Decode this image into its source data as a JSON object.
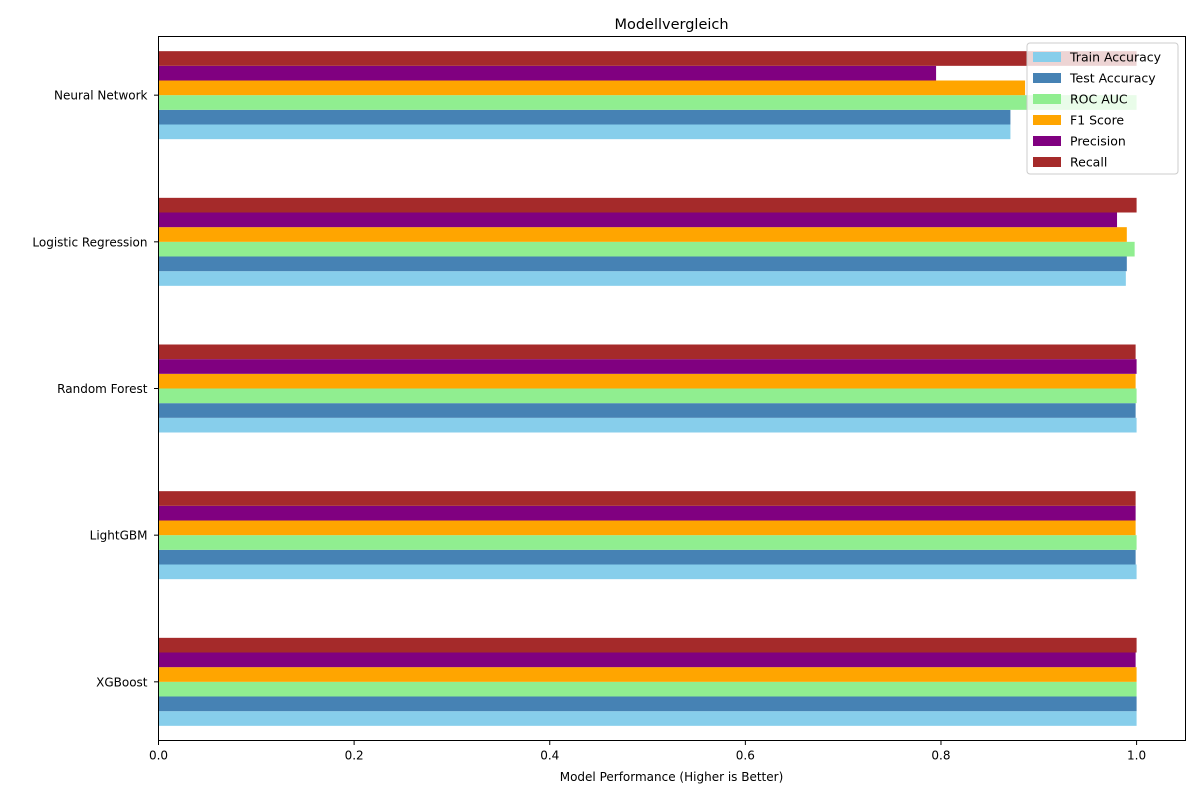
{
  "chart_data": {
    "type": "bar",
    "orientation": "horizontal",
    "title": "Modellvergleich",
    "xlabel": "Model Performance (Higher is Better)",
    "ylabel": "",
    "xlim": [
      0,
      1.05
    ],
    "xticks": [
      "0.0",
      "0.2",
      "0.4",
      "0.6",
      "0.8",
      "1.0"
    ],
    "categories": [
      "XGBoost",
      "LightGBM",
      "Random Forest",
      "Logistic Regression",
      "Neural Network"
    ],
    "series": [
      {
        "name": "Train Accuracy",
        "color": "#87ceeb",
        "values": [
          1.0,
          1.0,
          1.0,
          0.989,
          0.871
        ]
      },
      {
        "name": "Test Accuracy",
        "color": "#4682b4",
        "values": [
          1.0,
          0.999,
          0.999,
          0.99,
          0.871
        ]
      },
      {
        "name": "ROC AUC",
        "color": "#90ee90",
        "values": [
          1.0,
          1.0,
          1.0,
          0.998,
          1.0
        ]
      },
      {
        "name": "F1 Score",
        "color": "#ffa500",
        "values": [
          1.0,
          0.999,
          0.999,
          0.99,
          0.886
        ]
      },
      {
        "name": "Precision",
        "color": "#800080",
        "values": [
          0.999,
          0.999,
          1.0,
          0.98,
          0.795
        ]
      },
      {
        "name": "Recall",
        "color": "#a52a2a",
        "values": [
          1.0,
          0.999,
          0.999,
          1.0,
          1.0
        ]
      }
    ],
    "grid": false,
    "legend_position": "top-right"
  }
}
